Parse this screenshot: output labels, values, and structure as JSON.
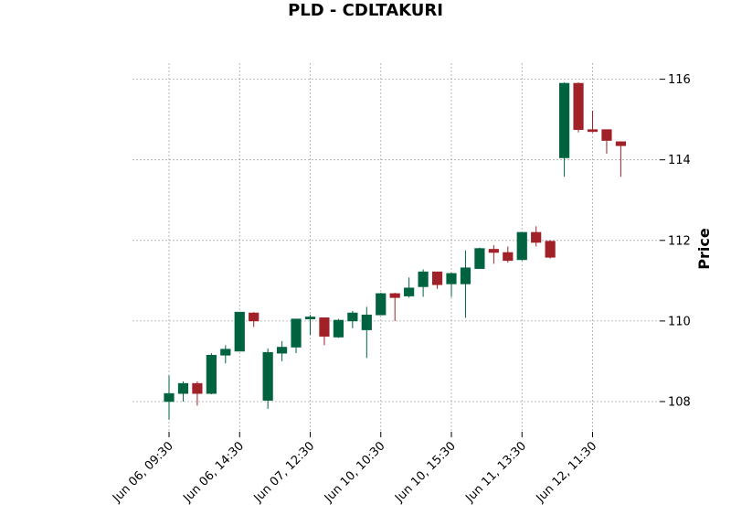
{
  "chart_data": {
    "type": "candlestick",
    "title": "PLD - CDLTAKURI",
    "xlabel": "",
    "ylabel": "Price",
    "ylim": [
      107.25,
      116.4
    ],
    "y_ticks": [
      108,
      110,
      112,
      114,
      116
    ],
    "grid": true,
    "y_axis_position": "right",
    "up_color": "#006340",
    "down_color": "#a02128",
    "x_tick_labels": [
      {
        "index": 0,
        "label": "Jun 06, 09:30"
      },
      {
        "index": 5,
        "label": "Jun 06, 14:30"
      },
      {
        "index": 10,
        "label": "Jun 07, 12:30"
      },
      {
        "index": 15,
        "label": "Jun 10, 10:30"
      },
      {
        "index": 20,
        "label": "Jun 10, 15:30"
      },
      {
        "index": 25,
        "label": "Jun 11, 13:30"
      },
      {
        "index": 30,
        "label": "Jun 12, 11:30"
      }
    ],
    "candles": [
      {
        "open": 108.0,
        "high": 108.65,
        "low": 107.55,
        "close": 108.2
      },
      {
        "open": 108.2,
        "high": 108.5,
        "low": 108.0,
        "close": 108.45
      },
      {
        "open": 108.45,
        "high": 108.5,
        "low": 107.9,
        "close": 108.2
      },
      {
        "open": 108.2,
        "high": 109.2,
        "low": 108.18,
        "close": 109.15
      },
      {
        "open": 109.15,
        "high": 109.4,
        "low": 108.95,
        "close": 109.3
      },
      {
        "open": 109.25,
        "high": 110.22,
        "low": 109.25,
        "close": 110.22
      },
      {
        "open": 110.2,
        "high": 110.22,
        "low": 109.85,
        "close": 110.0
      },
      {
        "open": 108.03,
        "high": 109.32,
        "low": 107.82,
        "close": 109.22
      },
      {
        "open": 109.2,
        "high": 109.5,
        "low": 109.0,
        "close": 109.35
      },
      {
        "open": 109.35,
        "high": 110.05,
        "low": 109.2,
        "close": 110.05
      },
      {
        "open": 110.05,
        "high": 110.15,
        "low": 109.65,
        "close": 110.1
      },
      {
        "open": 110.08,
        "high": 110.08,
        "low": 109.4,
        "close": 109.62
      },
      {
        "open": 109.6,
        "high": 110.05,
        "low": 109.58,
        "close": 110.02
      },
      {
        "open": 110.0,
        "high": 110.25,
        "low": 109.82,
        "close": 110.2
      },
      {
        "open": 109.78,
        "high": 110.35,
        "low": 109.08,
        "close": 110.15
      },
      {
        "open": 110.15,
        "high": 110.7,
        "low": 110.15,
        "close": 110.68
      },
      {
        "open": 110.68,
        "high": 110.7,
        "low": 110.0,
        "close": 110.58
      },
      {
        "open": 110.62,
        "high": 111.08,
        "low": 110.58,
        "close": 110.82
      },
      {
        "open": 110.85,
        "high": 111.28,
        "low": 110.6,
        "close": 111.22
      },
      {
        "open": 111.22,
        "high": 111.22,
        "low": 110.8,
        "close": 110.9
      },
      {
        "open": 110.92,
        "high": 111.2,
        "low": 110.6,
        "close": 111.18
      },
      {
        "open": 110.92,
        "high": 111.75,
        "low": 110.08,
        "close": 111.32
      },
      {
        "open": 111.3,
        "high": 111.82,
        "low": 111.3,
        "close": 111.8
      },
      {
        "open": 111.78,
        "high": 111.88,
        "low": 111.42,
        "close": 111.7
      },
      {
        "open": 111.7,
        "high": 111.85,
        "low": 111.45,
        "close": 111.5
      },
      {
        "open": 111.52,
        "high": 112.2,
        "low": 111.5,
        "close": 112.2
      },
      {
        "open": 112.2,
        "high": 112.35,
        "low": 111.85,
        "close": 111.95
      },
      {
        "open": 111.98,
        "high": 112.0,
        "low": 111.55,
        "close": 111.58
      },
      {
        "open": 114.05,
        "high": 115.92,
        "low": 113.58,
        "close": 115.9
      },
      {
        "open": 115.9,
        "high": 115.92,
        "low": 114.68,
        "close": 114.75
      },
      {
        "open": 114.75,
        "high": 115.22,
        "low": 114.68,
        "close": 114.7
      },
      {
        "open": 114.75,
        "high": 114.75,
        "low": 114.15,
        "close": 114.48
      },
      {
        "open": 114.45,
        "high": 114.45,
        "low": 113.58,
        "close": 114.35
      }
    ]
  }
}
